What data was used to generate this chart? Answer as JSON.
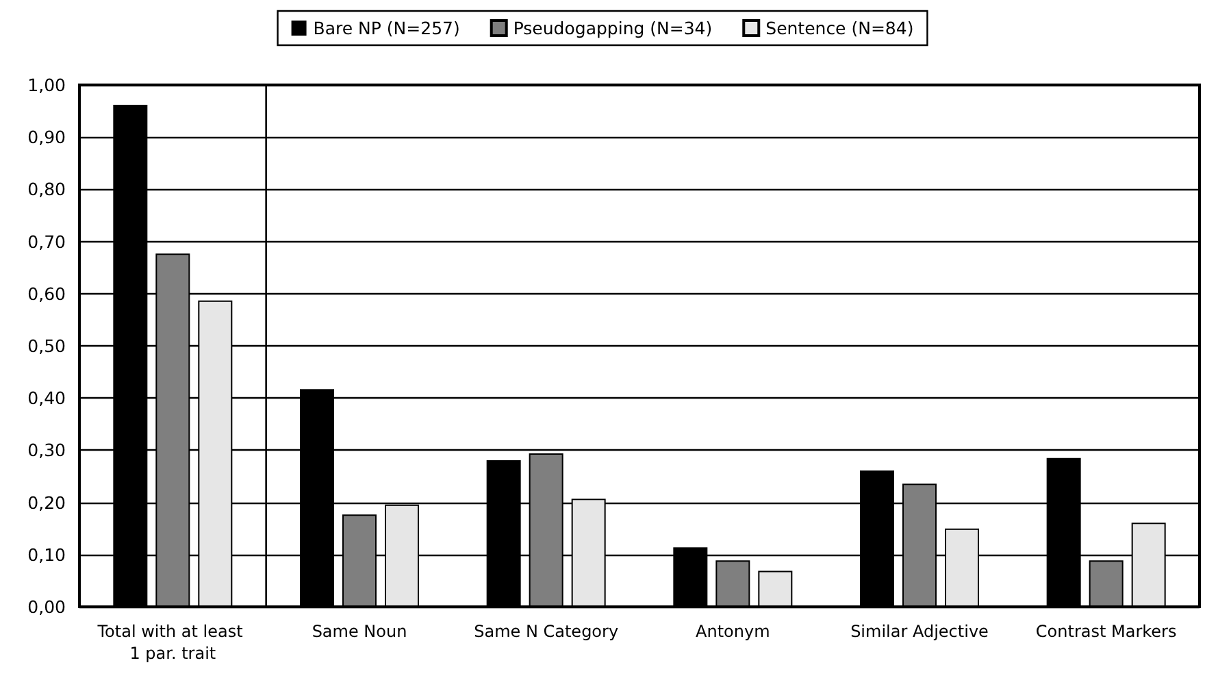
{
  "chart_data": {
    "type": "bar",
    "categories": [
      "Total with at least 1 par. trait",
      "Same Noun",
      "Same N Category",
      "Antonym",
      "Similar Adjective",
      "Contrast Markers"
    ],
    "series": [
      {
        "name": "Bare NP (N=257)",
        "color": "#000000",
        "values": [
          0.962,
          0.417,
          0.281,
          0.114,
          0.261,
          0.285
        ]
      },
      {
        "name": "Pseudogapping (N=34)",
        "color": "#7f7f7f",
        "values": [
          0.677,
          0.177,
          0.294,
          0.089,
          0.236,
          0.089
        ]
      },
      {
        "name": "Sentence (N=84)",
        "color": "#e6e6e6",
        "values": [
          0.587,
          0.196,
          0.207,
          0.069,
          0.15,
          0.161
        ]
      }
    ],
    "ylim": [
      0,
      1
    ],
    "yticks": [
      {
        "value": 0,
        "label": "0,00"
      },
      {
        "value": 0.1,
        "label": "0,10"
      },
      {
        "value": 0.2,
        "label": "0,20"
      },
      {
        "value": 0.3,
        "label": "0,30"
      },
      {
        "value": 0.4,
        "label": "0,40"
      },
      {
        "value": 0.5,
        "label": "0,50"
      },
      {
        "value": 0.6,
        "label": "0,60"
      },
      {
        "value": 0.7,
        "label": "0,70"
      },
      {
        "value": 0.8,
        "label": "0,80"
      },
      {
        "value": 0.9,
        "label": "0,90"
      },
      {
        "value": 1,
        "label": "1,00"
      }
    ],
    "grid": "y",
    "legend": "top"
  }
}
